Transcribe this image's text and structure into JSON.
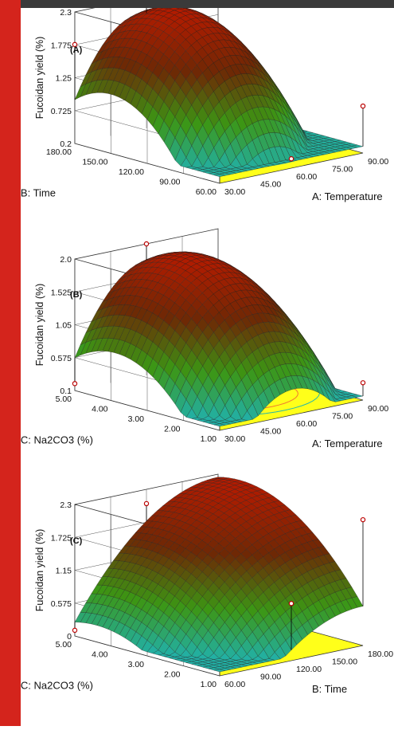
{
  "figure": {
    "accent_color": "#d4241c",
    "surface_high_color": "#b31b00",
    "surface_low_color": "#1fb3b5",
    "floor_color": "#ffff1a"
  },
  "chart_data": [
    {
      "type": "surface3d",
      "panel_label": "(A)",
      "zlabel": "Fucoidan yield (%)",
      "zticks": [
        "2.3",
        "1.775",
        "1.25",
        "0.725",
        "0.2"
      ],
      "zlim": [
        0.2,
        2.3
      ],
      "x_axis": {
        "label": "A: Temperature",
        "ticks": [
          "30.00",
          "45.00",
          "60.00",
          "75.00",
          "90.00"
        ],
        "range": [
          30,
          90
        ]
      },
      "y_axis": {
        "label": "B: Time",
        "ticks": [
          "60.00",
          "90.00",
          "120.00",
          "150.00",
          "180.00"
        ],
        "range": [
          60,
          180
        ]
      },
      "design_points": [
        {
          "x": 30,
          "y": 180,
          "z": 1.78
        },
        {
          "x": 60,
          "y": 60,
          "z": 0.35
        },
        {
          "x": 60,
          "y": 180,
          "z": 2.2
        },
        {
          "x": 90,
          "y": 60,
          "z": 0.95
        }
      ]
    },
    {
      "type": "surface3d",
      "panel_label": "(B)",
      "zlabel": "Fucoidan yield (%)",
      "zticks": [
        "2.0",
        "1.525",
        "1.05",
        "0.575",
        "0.1"
      ],
      "zlim": [
        0.1,
        2.0
      ],
      "x_axis": {
        "label": "A: Temperature",
        "ticks": [
          "30.00",
          "45.00",
          "60.00",
          "75.00",
          "90.00"
        ],
        "range": [
          30,
          90
        ]
      },
      "y_axis": {
        "label": "C: Na2CO3 (%)",
        "ticks": [
          "1.00",
          "2.00",
          "3.00",
          "4.00",
          "5.00"
        ],
        "range": [
          1,
          5
        ]
      },
      "design_points": [
        {
          "x": 30,
          "y": 5,
          "z": 0.2
        },
        {
          "x": 60,
          "y": 5,
          "z": 2.0
        },
        {
          "x": 90,
          "y": 1,
          "z": 0.35
        }
      ]
    },
    {
      "type": "surface3d",
      "panel_label": "(C)",
      "zlabel": "Fucoidan yield (%)",
      "zticks": [
        "2.3",
        "1.725",
        "1.15",
        "0.575",
        "0"
      ],
      "zlim": [
        0,
        2.3
      ],
      "x_axis": {
        "label": "B: Time",
        "ticks": [
          "60.00",
          "90.00",
          "120.00",
          "150.00",
          "180.00"
        ],
        "range": [
          60,
          180
        ]
      },
      "y_axis": {
        "label": "C: Na2CO3 (%)",
        "ticks": [
          "1.00",
          "2.00",
          "3.00",
          "4.00",
          "5.00"
        ],
        "range": [
          1,
          5
        ]
      },
      "design_points": [
        {
          "x": 60,
          "y": 5,
          "z": 0.1
        },
        {
          "x": 120,
          "y": 1,
          "z": 1.0
        },
        {
          "x": 120,
          "y": 5,
          "z": 2.05
        },
        {
          "x": 180,
          "y": 1,
          "z": 2.2
        }
      ]
    }
  ]
}
